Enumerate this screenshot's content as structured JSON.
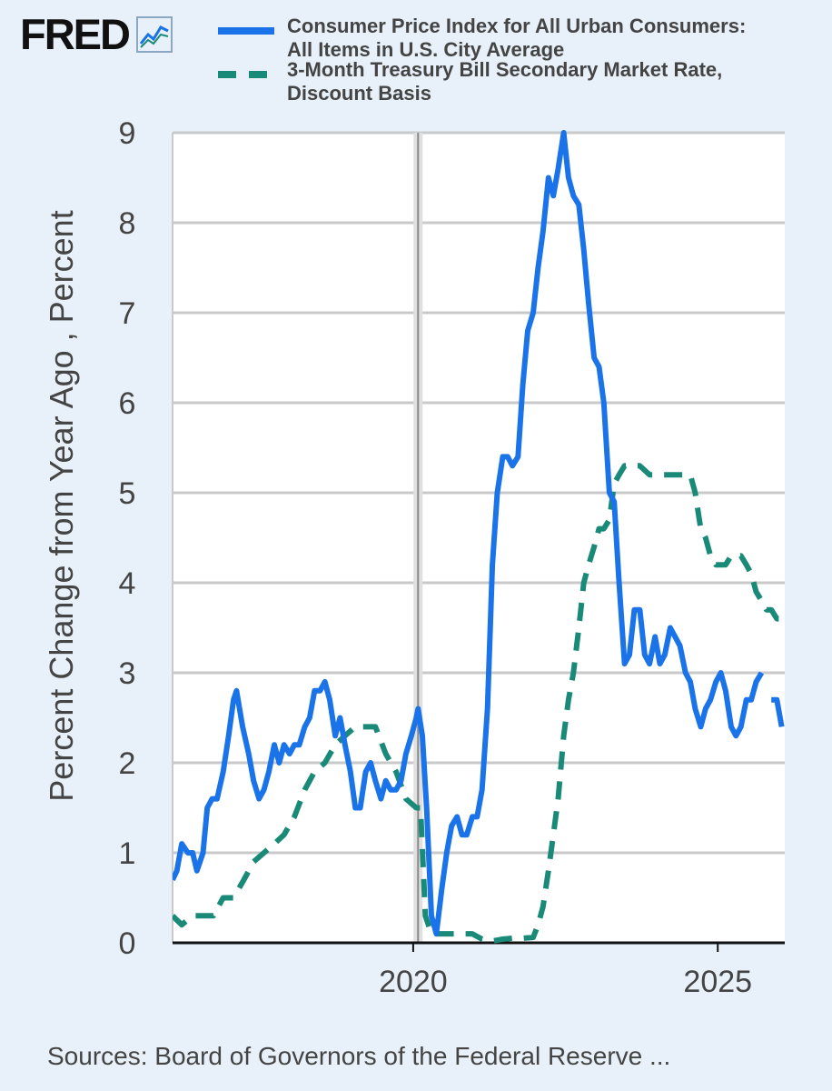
{
  "logo": {
    "text": "FRED",
    "icon": "fred-chart-icon"
  },
  "legend": [
    {
      "label": "Consumer Price Index for All Urban Consumers: All Items in U.S. City Average",
      "color": "#1a73e8",
      "style": "solid"
    },
    {
      "label": "3-Month Treasury Bill Secondary Market Rate, Discount Basis",
      "color": "#1a8a78",
      "style": "dashed"
    }
  ],
  "source": "Sources: Board of Governors of the Federal Reserve ...",
  "chart_data": {
    "type": "line",
    "ylabel": "Percent Change from Year Ago , Percent",
    "ylim": [
      0,
      9
    ],
    "xlim": [
      2016.05,
      2026.1
    ],
    "yticks": [
      "0",
      "1",
      "2",
      "3",
      "4",
      "5",
      "6",
      "7",
      "8",
      "9"
    ],
    "xticks": [
      {
        "value": 2020,
        "label": "2020"
      },
      {
        "value": 2025,
        "label": "2025"
      }
    ],
    "grid": true,
    "recession_line": 2020.08,
    "series": [
      {
        "name": "Consumer Price Index for All Urban Consumers: All Items in U.S. City Average",
        "color": "#1a73e8",
        "points": [
          [
            2016.05,
            0.7
          ],
          [
            2016.12,
            0.8
          ],
          [
            2016.2,
            1.1
          ],
          [
            2016.3,
            1.0
          ],
          [
            2016.38,
            1.0
          ],
          [
            2016.45,
            0.8
          ],
          [
            2016.55,
            1.0
          ],
          [
            2016.62,
            1.5
          ],
          [
            2016.7,
            1.6
          ],
          [
            2016.78,
            1.6
          ],
          [
            2016.88,
            1.9
          ],
          [
            2016.97,
            2.3
          ],
          [
            2017.05,
            2.7
          ],
          [
            2017.1,
            2.8
          ],
          [
            2017.2,
            2.4
          ],
          [
            2017.3,
            2.1
          ],
          [
            2017.38,
            1.8
          ],
          [
            2017.47,
            1.6
          ],
          [
            2017.55,
            1.7
          ],
          [
            2017.63,
            1.9
          ],
          [
            2017.72,
            2.2
          ],
          [
            2017.8,
            2.0
          ],
          [
            2017.88,
            2.2
          ],
          [
            2017.97,
            2.1
          ],
          [
            2018.05,
            2.2
          ],
          [
            2018.13,
            2.2
          ],
          [
            2018.22,
            2.4
          ],
          [
            2018.3,
            2.5
          ],
          [
            2018.38,
            2.8
          ],
          [
            2018.47,
            2.8
          ],
          [
            2018.55,
            2.9
          ],
          [
            2018.63,
            2.7
          ],
          [
            2018.72,
            2.3
          ],
          [
            2018.8,
            2.5
          ],
          [
            2018.88,
            2.2
          ],
          [
            2018.97,
            1.9
          ],
          [
            2019.05,
            1.5
          ],
          [
            2019.13,
            1.5
          ],
          [
            2019.22,
            1.9
          ],
          [
            2019.3,
            2.0
          ],
          [
            2019.38,
            1.8
          ],
          [
            2019.47,
            1.6
          ],
          [
            2019.55,
            1.8
          ],
          [
            2019.63,
            1.7
          ],
          [
            2019.72,
            1.7
          ],
          [
            2019.8,
            1.8
          ],
          [
            2019.88,
            2.1
          ],
          [
            2019.97,
            2.3
          ],
          [
            2020.05,
            2.5
          ],
          [
            2020.08,
            2.6
          ],
          [
            2020.15,
            2.3
          ],
          [
            2020.22,
            1.5
          ],
          [
            2020.3,
            0.3
          ],
          [
            2020.38,
            0.1
          ],
          [
            2020.47,
            0.6
          ],
          [
            2020.55,
            1.0
          ],
          [
            2020.63,
            1.3
          ],
          [
            2020.72,
            1.4
          ],
          [
            2020.8,
            1.2
          ],
          [
            2020.88,
            1.2
          ],
          [
            2020.97,
            1.4
          ],
          [
            2021.05,
            1.4
          ],
          [
            2021.13,
            1.7
          ],
          [
            2021.22,
            2.6
          ],
          [
            2021.3,
            4.2
          ],
          [
            2021.38,
            5.0
          ],
          [
            2021.47,
            5.4
          ],
          [
            2021.55,
            5.4
          ],
          [
            2021.63,
            5.3
          ],
          [
            2021.72,
            5.4
          ],
          [
            2021.8,
            6.2
          ],
          [
            2021.88,
            6.8
          ],
          [
            2021.97,
            7.0
          ],
          [
            2022.05,
            7.5
          ],
          [
            2022.13,
            7.9
          ],
          [
            2022.22,
            8.5
          ],
          [
            2022.3,
            8.3
          ],
          [
            2022.38,
            8.6
          ],
          [
            2022.47,
            9.0
          ],
          [
            2022.55,
            8.5
          ],
          [
            2022.63,
            8.3
          ],
          [
            2022.72,
            8.2
          ],
          [
            2022.8,
            7.7
          ],
          [
            2022.88,
            7.1
          ],
          [
            2022.97,
            6.5
          ],
          [
            2023.05,
            6.4
          ],
          [
            2023.13,
            6.0
          ],
          [
            2023.22,
            5.0
          ],
          [
            2023.3,
            4.9
          ],
          [
            2023.38,
            4.0
          ],
          [
            2023.47,
            3.1
          ],
          [
            2023.55,
            3.2
          ],
          [
            2023.63,
            3.7
          ],
          [
            2023.72,
            3.7
          ],
          [
            2023.8,
            3.2
          ],
          [
            2023.88,
            3.1
          ],
          [
            2023.97,
            3.4
          ],
          [
            2024.05,
            3.1
          ],
          [
            2024.13,
            3.2
          ],
          [
            2024.22,
            3.5
          ],
          [
            2024.3,
            3.4
          ],
          [
            2024.38,
            3.3
          ],
          [
            2024.47,
            3.0
          ],
          [
            2024.55,
            2.9
          ],
          [
            2024.63,
            2.6
          ],
          [
            2024.72,
            2.4
          ],
          [
            2024.8,
            2.6
          ],
          [
            2024.88,
            2.7
          ],
          [
            2024.97,
            2.9
          ],
          [
            2025.05,
            3.0
          ],
          [
            2025.13,
            2.8
          ],
          [
            2025.22,
            2.4
          ],
          [
            2025.3,
            2.3
          ],
          [
            2025.38,
            2.4
          ],
          [
            2025.47,
            2.7
          ],
          [
            2025.55,
            2.7
          ],
          [
            2025.63,
            2.9
          ],
          [
            2025.72,
            3.0
          ],
          null,
          [
            2025.88,
            2.7
          ],
          [
            2025.97,
            2.7
          ],
          [
            2026.05,
            2.4
          ]
        ]
      },
      {
        "name": "3-Month Treasury Bill Secondary Market Rate, Discount Basis",
        "color": "#1a8a78",
        "dashed": true,
        "points": [
          [
            2016.05,
            0.3
          ],
          [
            2016.2,
            0.2
          ],
          [
            2016.38,
            0.3
          ],
          [
            2016.55,
            0.3
          ],
          [
            2016.72,
            0.3
          ],
          [
            2016.88,
            0.5
          ],
          [
            2017.05,
            0.5
          ],
          [
            2017.22,
            0.7
          ],
          [
            2017.38,
            0.9
          ],
          [
            2017.55,
            1.0
          ],
          [
            2017.72,
            1.1
          ],
          [
            2017.88,
            1.2
          ],
          [
            2018.05,
            1.4
          ],
          [
            2018.22,
            1.7
          ],
          [
            2018.38,
            1.9
          ],
          [
            2018.55,
            2.0
          ],
          [
            2018.72,
            2.2
          ],
          [
            2018.88,
            2.3
          ],
          [
            2019.05,
            2.4
          ],
          [
            2019.22,
            2.4
          ],
          [
            2019.38,
            2.4
          ],
          [
            2019.55,
            2.1
          ],
          [
            2019.72,
            1.9
          ],
          [
            2019.88,
            1.6
          ],
          [
            2020.05,
            1.5
          ],
          [
            2020.12,
            1.5
          ],
          [
            2020.2,
            0.3
          ],
          [
            2020.3,
            0.1
          ],
          [
            2020.47,
            0.1
          ],
          [
            2020.63,
            0.1
          ],
          [
            2020.8,
            0.1
          ],
          [
            2020.97,
            0.1
          ],
          [
            2021.13,
            0.04
          ],
          [
            2021.3,
            0.02
          ],
          [
            2021.47,
            0.04
          ],
          [
            2021.63,
            0.05
          ],
          [
            2021.8,
            0.05
          ],
          [
            2021.97,
            0.06
          ],
          [
            2022.05,
            0.2
          ],
          [
            2022.13,
            0.4
          ],
          [
            2022.22,
            0.8
          ],
          [
            2022.3,
            1.2
          ],
          [
            2022.38,
            1.6
          ],
          [
            2022.47,
            2.3
          ],
          [
            2022.55,
            2.7
          ],
          [
            2022.63,
            3.0
          ],
          [
            2022.72,
            3.5
          ],
          [
            2022.8,
            4.0
          ],
          [
            2022.88,
            4.2
          ],
          [
            2022.97,
            4.4
          ],
          [
            2023.05,
            4.6
          ],
          [
            2023.13,
            4.6
          ],
          [
            2023.22,
            4.7
          ],
          [
            2023.3,
            5.1
          ],
          [
            2023.38,
            5.2
          ],
          [
            2023.47,
            5.3
          ],
          [
            2023.55,
            5.3
          ],
          [
            2023.72,
            5.3
          ],
          [
            2023.88,
            5.2
          ],
          [
            2024.05,
            5.2
          ],
          [
            2024.22,
            5.2
          ],
          [
            2024.38,
            5.2
          ],
          [
            2024.55,
            5.2
          ],
          [
            2024.63,
            5.0
          ],
          [
            2024.72,
            4.6
          ],
          [
            2024.8,
            4.5
          ],
          [
            2024.88,
            4.3
          ],
          [
            2024.97,
            4.2
          ],
          [
            2025.05,
            4.2
          ],
          [
            2025.13,
            4.2
          ],
          [
            2025.22,
            4.3
          ],
          [
            2025.3,
            4.3
          ],
          [
            2025.38,
            4.3
          ],
          [
            2025.47,
            4.2
          ],
          [
            2025.55,
            4.1
          ],
          [
            2025.63,
            3.9
          ],
          [
            2025.72,
            3.8
          ],
          [
            2025.8,
            3.7
          ],
          [
            2025.88,
            3.7
          ],
          [
            2025.97,
            3.6
          ],
          [
            2026.05,
            3.6
          ]
        ]
      }
    ]
  }
}
